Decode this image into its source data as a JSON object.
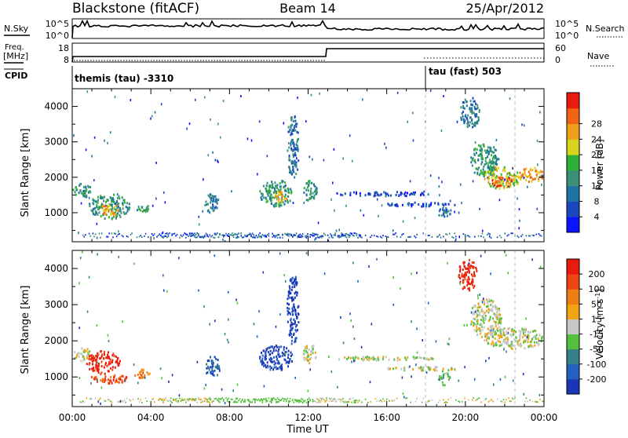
{
  "header": {
    "station": "Blackstone (fitACF)",
    "beam": "Beam 14",
    "date": "25/Apr/2012"
  },
  "params": {
    "nsky_label": "N.Sky",
    "nsearch_label": "N.Search",
    "freq_label_top": "Freq.",
    "freq_label_bottom": "[MHz]",
    "nave_label": "Nave",
    "cpid_label": "CPID",
    "nsky_ticks": [
      "10^5",
      "10^0"
    ],
    "nsearch_ticks": [
      "10^5",
      "10^0"
    ],
    "freq_ticks": [
      "18",
      "8"
    ],
    "nave_ticks": [
      "60",
      "0"
    ],
    "cpid_segments": [
      {
        "start_hour": 0,
        "label": "themis (tau)  -3310"
      },
      {
        "start_hour": 18,
        "label": "tau (fast) 503"
      }
    ]
  },
  "chart_data": [
    {
      "type": "heatmap",
      "name": "power",
      "ylabel": "Slant Range [km]",
      "ylim": [
        180,
        4500
      ],
      "yticks": [
        1000,
        2000,
        3000,
        4000
      ],
      "x_hours": [
        0,
        24
      ],
      "colorbar": {
        "label": "Power [dB]",
        "ticks": [
          "4",
          "8",
          "12",
          "16",
          "20",
          "24",
          "28"
        ],
        "colors": [
          "#0a14ff",
          "#1a46c0",
          "#1f73a3",
          "#3a9077",
          "#2fb03a",
          "#d8d41c",
          "#f0a018",
          "#f06414",
          "#e81c0c"
        ]
      },
      "regions": [
        {
          "t0": 0.0,
          "t1": 1.0,
          "r0": 1450,
          "r1": 1850,
          "c": 3
        },
        {
          "t0": 0.8,
          "t1": 2.9,
          "r0": 850,
          "r1": 1550,
          "c": 3
        },
        {
          "t0": 1.4,
          "t1": 2.4,
          "r0": 950,
          "r1": 1300,
          "c": 6
        },
        {
          "t0": 3.2,
          "t1": 3.9,
          "r0": 1050,
          "r1": 1250,
          "c": 3
        },
        {
          "t0": 6.7,
          "t1": 7.4,
          "r0": 1000,
          "r1": 1600,
          "c": 2
        },
        {
          "t0": 9.5,
          "t1": 11.2,
          "r0": 1200,
          "r1": 1950,
          "c": 3
        },
        {
          "t0": 10.2,
          "t1": 10.9,
          "r0": 1300,
          "r1": 1650,
          "c": 6
        },
        {
          "t0": 10.9,
          "t1": 11.5,
          "r0": 1900,
          "r1": 3800,
          "c": 2
        },
        {
          "t0": 11.7,
          "t1": 12.4,
          "r0": 1350,
          "r1": 1950,
          "c": 3
        },
        {
          "t0": 13.2,
          "t1": 18.5,
          "r0": 1500,
          "r1": 1620,
          "c": 1
        },
        {
          "t0": 15.8,
          "t1": 19.6,
          "r0": 1200,
          "r1": 1320,
          "c": 1
        },
        {
          "t0": 18.6,
          "t1": 19.2,
          "r0": 800,
          "r1": 1200,
          "c": 2
        },
        {
          "t0": 19.7,
          "t1": 20.7,
          "r0": 3400,
          "r1": 4300,
          "c": 2
        },
        {
          "t0": 20.2,
          "t1": 21.7,
          "r0": 2000,
          "r1": 3000,
          "c": 3
        },
        {
          "t0": 20.9,
          "t1": 22.8,
          "r0": 1700,
          "r1": 2350,
          "c": 5
        },
        {
          "t0": 21.3,
          "t1": 22.4,
          "r0": 1750,
          "r1": 2050,
          "c": 7
        },
        {
          "t0": 22.7,
          "t1": 24.0,
          "r0": 1900,
          "r1": 2300,
          "c": 6
        }
      ]
    },
    {
      "type": "heatmap",
      "name": "velocity",
      "ylabel": "Slant Range [km]",
      "ylim": [
        180,
        4500
      ],
      "yticks": [
        1000,
        2000,
        3000,
        4000
      ],
      "x_hours": [
        0,
        24
      ],
      "xticks": [
        "00:00",
        "04:00",
        "08:00",
        "12:00",
        "16:00",
        "20:00",
        "00:00"
      ],
      "xlabel": "Time UT",
      "colorbar": {
        "label": "Velocity [m s",
        "label_sup": "-1",
        "ticks": [
          "200",
          "100",
          "50",
          "15",
          "-15",
          "-50",
          "-100",
          "-200"
        ],
        "colors": [
          "#1a36b8",
          "#2460c0",
          "#36808a",
          "#54c03e",
          "#c6c6c6",
          "#f0a414",
          "#f07c14",
          "#f04414",
          "#e81c0c"
        ]
      },
      "regions": [
        {
          "t0": 0.0,
          "t1": 0.9,
          "r0": 1450,
          "r1": 1850,
          "c": 4
        },
        {
          "t0": 0.7,
          "t1": 2.4,
          "r0": 1100,
          "r1": 1750,
          "c": 8
        },
        {
          "t0": 0.8,
          "t1": 2.9,
          "r0": 850,
          "r1": 1100,
          "c": 7
        },
        {
          "t0": 3.1,
          "t1": 3.9,
          "r0": 1000,
          "r1": 1250,
          "c": 6
        },
        {
          "t0": 6.7,
          "t1": 7.5,
          "r0": 1000,
          "r1": 1600,
          "c": 1
        },
        {
          "t0": 9.5,
          "t1": 11.2,
          "r0": 1200,
          "r1": 1900,
          "c": 0
        },
        {
          "t0": 10.9,
          "t1": 11.5,
          "r0": 1900,
          "r1": 3900,
          "c": 0
        },
        {
          "t0": 11.7,
          "t1": 12.4,
          "r0": 1400,
          "r1": 1950,
          "c": 4
        },
        {
          "t0": 13.2,
          "t1": 18.5,
          "r0": 1480,
          "r1": 1600,
          "c": 4
        },
        {
          "t0": 15.8,
          "t1": 19.6,
          "r0": 1200,
          "r1": 1320,
          "c": 4
        },
        {
          "t0": 18.6,
          "t1": 19.2,
          "r0": 800,
          "r1": 1200,
          "c": 3
        },
        {
          "t0": 19.6,
          "t1": 20.6,
          "r0": 3400,
          "r1": 4300,
          "c": 8
        },
        {
          "t0": 20.2,
          "t1": 21.8,
          "r0": 2100,
          "r1": 3200,
          "c": 4
        },
        {
          "t0": 20.9,
          "t1": 24.0,
          "r0": 1800,
          "r1": 2400,
          "c": 4
        }
      ]
    }
  ]
}
